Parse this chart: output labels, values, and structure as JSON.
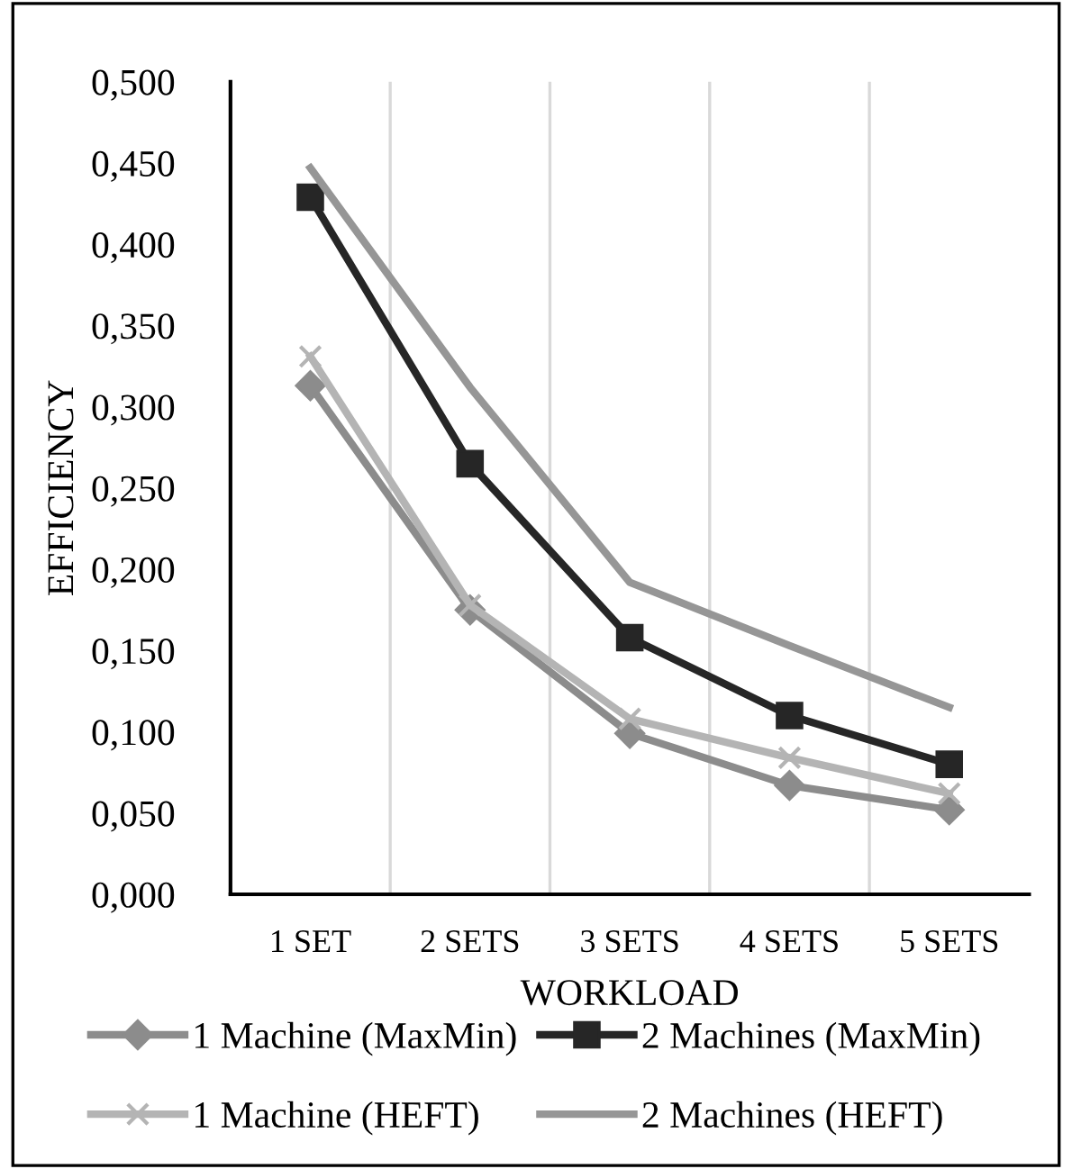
{
  "chart_data": {
    "type": "line",
    "xlabel": "WORKLOAD",
    "ylabel": "EFFICIENCY",
    "categories": [
      "1 SET",
      "2 SETS",
      "3 SETS",
      "4 SETS",
      "5 SETS"
    ],
    "ylim": [
      0,
      0.5
    ],
    "yticks": [
      {
        "value": 0,
        "label": "0,000"
      },
      {
        "value": 0.05,
        "label": "0,050"
      },
      {
        "value": 0.1,
        "label": "0,100"
      },
      {
        "value": 0.15,
        "label": "0,150"
      },
      {
        "value": 0.2,
        "label": "0,200"
      },
      {
        "value": 0.25,
        "label": "0,250"
      },
      {
        "value": 0.3,
        "label": "0,300"
      },
      {
        "value": 0.35,
        "label": "0,350"
      },
      {
        "value": 0.4,
        "label": "0,400"
      },
      {
        "value": 0.45,
        "label": "0,450"
      },
      {
        "value": 0.5,
        "label": "0,500"
      }
    ],
    "grid": "x",
    "legend": "bottom",
    "line_style": "solid",
    "series": [
      {
        "name": "1 Machine (MaxMin)",
        "color": "#8c8c8c",
        "marker": "diamond",
        "values": [
          0.313,
          0.175,
          0.099,
          0.067,
          0.052
        ]
      },
      {
        "name": "2 Machines (MaxMin)",
        "color": "#262626",
        "marker": "square",
        "values": [
          0.429,
          0.265,
          0.158,
          0.11,
          0.08
        ]
      },
      {
        "name": "1 Machine (HEFT)",
        "color": "#b4b4b4",
        "marker": "cross",
        "values": [
          0.331,
          0.178,
          0.108,
          0.084,
          0.062
        ]
      },
      {
        "name": "2 Machines (HEFT)",
        "color": "#969696",
        "marker": "none",
        "values": [
          0.447,
          0.312,
          0.192,
          0.153,
          0.115
        ]
      }
    ]
  }
}
